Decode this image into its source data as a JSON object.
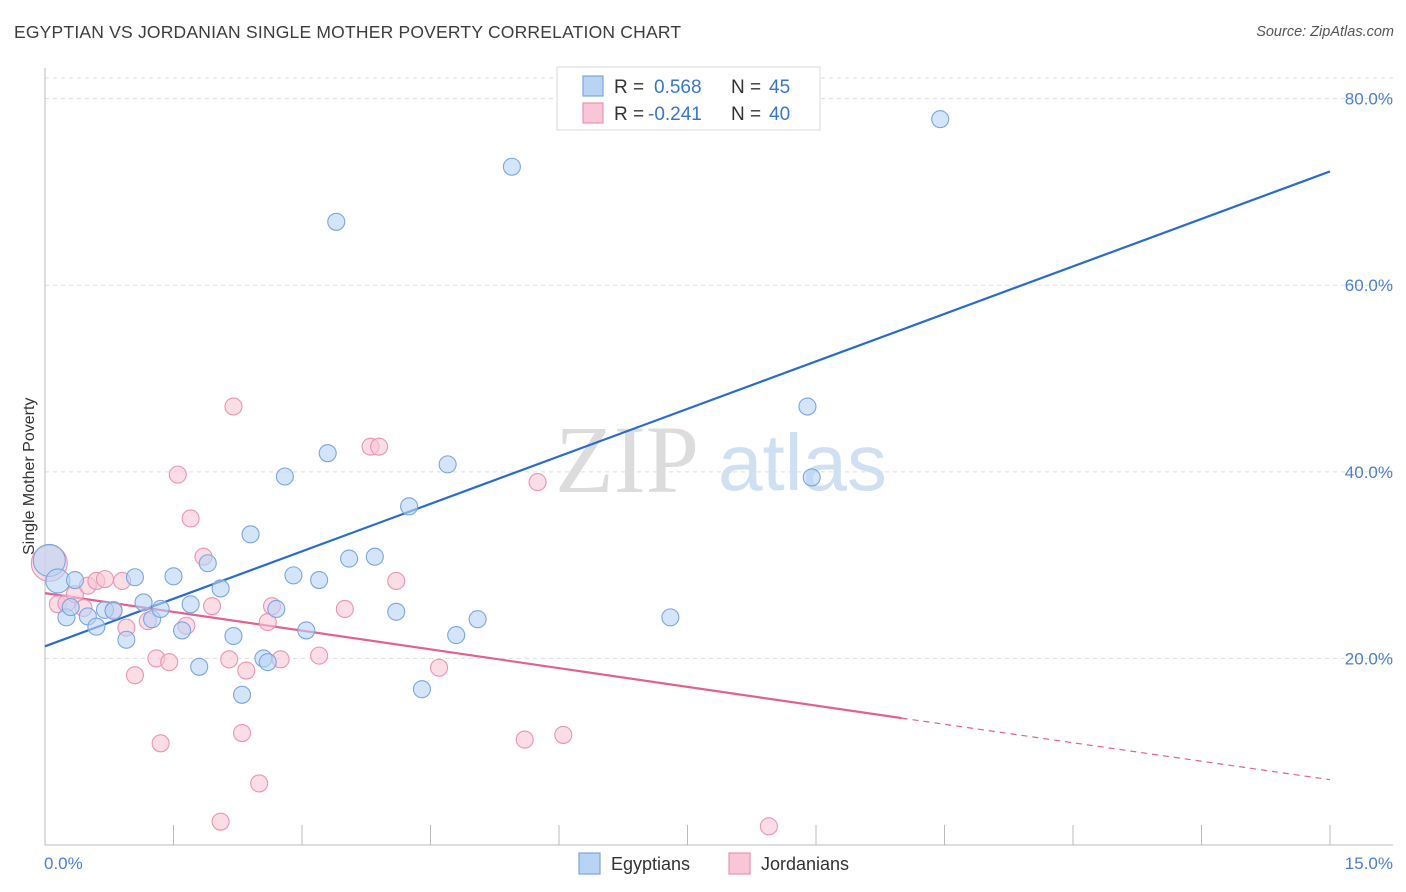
{
  "header": {
    "title": "EGYPTIAN VS JORDANIAN SINGLE MOTHER POVERTY CORRELATION CHART",
    "source": "Source: ZipAtlas.com"
  },
  "watermark": {
    "zip": "ZIP",
    "atlas": "atlas"
  },
  "colors": {
    "egyptians_fill": "#b9d3f5",
    "egyptians_stroke": "#7aa6df",
    "egyptians_line": "#2a6ccc",
    "jordanians_fill": "#f8c6d6",
    "jordanians_stroke": "#ec93b2",
    "jordanians_line": "#e0628e",
    "grid": "#dddddd",
    "tick_text": "#4a7fd0"
  },
  "legend": {
    "rows": [
      {
        "r_label": "R =",
        "r_value": "0.568",
        "n_label": "N =",
        "n_value": "45"
      },
      {
        "r_label": "R =",
        "r_value": "-0.241",
        "n_label": "N =",
        "n_value": "40"
      }
    ]
  },
  "chart_data": {
    "type": "scatter",
    "title": "EGYPTIAN VS JORDANIAN SINGLE MOTHER POVERTY CORRELATION CHART",
    "xlabel": "",
    "ylabel": "Single Mother Poverty",
    "xlim": [
      0,
      15
    ],
    "ylim": [
      0,
      82
    ],
    "x_tick_labels": [
      "0.0%",
      "15.0%"
    ],
    "y_ticks": [
      20,
      40,
      60,
      80
    ],
    "y_tick_labels": [
      "20.0%",
      "40.0%",
      "60.0%",
      "80.0%"
    ],
    "grid": true,
    "legend_position": "top-center",
    "series": [
      {
        "name": "Egyptians",
        "r": 0.568,
        "n": 45,
        "trend": {
          "x_start": 0,
          "y_start": 21.3,
          "x_end": 15,
          "y_end": 72.2
        },
        "points": [
          [
            0.05,
            30.5
          ],
          [
            0.15,
            28.3
          ],
          [
            0.25,
            24.4
          ],
          [
            0.35,
            28.4
          ],
          [
            0.5,
            24.5
          ],
          [
            0.6,
            23.4
          ],
          [
            0.7,
            25.2
          ],
          [
            0.8,
            25.1
          ],
          [
            0.95,
            22.0
          ],
          [
            1.05,
            28.7
          ],
          [
            1.15,
            26.0
          ],
          [
            1.25,
            24.2
          ],
          [
            1.35,
            25.3
          ],
          [
            1.5,
            28.8
          ],
          [
            1.6,
            23.0
          ],
          [
            1.7,
            25.8
          ],
          [
            1.8,
            19.1
          ],
          [
            1.9,
            30.2
          ],
          [
            2.05,
            27.5
          ],
          [
            2.2,
            22.4
          ],
          [
            2.3,
            16.1
          ],
          [
            2.4,
            33.3
          ],
          [
            2.55,
            20.0
          ],
          [
            2.6,
            19.6
          ],
          [
            2.7,
            25.3
          ],
          [
            2.8,
            39.5
          ],
          [
            2.9,
            28.9
          ],
          [
            3.05,
            23.0
          ],
          [
            3.2,
            28.4
          ],
          [
            3.3,
            42.0
          ],
          [
            3.4,
            66.8
          ],
          [
            3.55,
            30.7
          ],
          [
            3.85,
            30.9
          ],
          [
            4.1,
            25.0
          ],
          [
            4.25,
            36.3
          ],
          [
            4.4,
            16.7
          ],
          [
            4.7,
            40.8
          ],
          [
            4.8,
            22.5
          ],
          [
            5.05,
            24.2
          ],
          [
            5.45,
            72.7
          ],
          [
            7.3,
            24.4
          ],
          [
            8.9,
            47.0
          ],
          [
            8.95,
            39.4
          ],
          [
            10.45,
            77.8
          ],
          [
            0.3,
            25.5
          ]
        ]
      },
      {
        "name": "Jordanians",
        "r": -0.241,
        "n": 40,
        "trend": {
          "x_start": 0,
          "y_start": 27.0,
          "x_end": 10.0,
          "y_end": 13.6,
          "dash_x_end": 15,
          "dash_y_end": 7.0
        },
        "points": [
          [
            0.05,
            30.2
          ],
          [
            0.15,
            25.8
          ],
          [
            0.25,
            25.9
          ],
          [
            0.35,
            26.9
          ],
          [
            0.45,
            25.4
          ],
          [
            0.5,
            27.8
          ],
          [
            0.6,
            28.3
          ],
          [
            0.7,
            28.5
          ],
          [
            0.8,
            25.2
          ],
          [
            0.9,
            28.3
          ],
          [
            0.95,
            23.3
          ],
          [
            1.05,
            18.2
          ],
          [
            1.2,
            24.0
          ],
          [
            1.3,
            20.0
          ],
          [
            1.35,
            10.9
          ],
          [
            1.45,
            19.6
          ],
          [
            1.55,
            39.7
          ],
          [
            1.7,
            35.0
          ],
          [
            1.65,
            23.5
          ],
          [
            1.85,
            30.9
          ],
          [
            1.95,
            25.6
          ],
          [
            2.05,
            2.5
          ],
          [
            2.15,
            19.9
          ],
          [
            2.2,
            47.0
          ],
          [
            2.3,
            12.0
          ],
          [
            2.35,
            18.7
          ],
          [
            2.5,
            6.6
          ],
          [
            2.6,
            23.9
          ],
          [
            2.65,
            25.6
          ],
          [
            2.75,
            19.9
          ],
          [
            3.2,
            20.3
          ],
          [
            3.5,
            25.3
          ],
          [
            3.8,
            42.7
          ],
          [
            3.9,
            42.7
          ],
          [
            4.1,
            28.3
          ],
          [
            4.6,
            19.0
          ],
          [
            5.6,
            11.3
          ],
          [
            5.75,
            38.9
          ],
          [
            6.05,
            11.8
          ],
          [
            8.45,
            2.0
          ]
        ]
      }
    ]
  },
  "bottom_legend": {
    "items": [
      {
        "label": "Egyptians"
      },
      {
        "label": "Jordanians"
      }
    ]
  }
}
